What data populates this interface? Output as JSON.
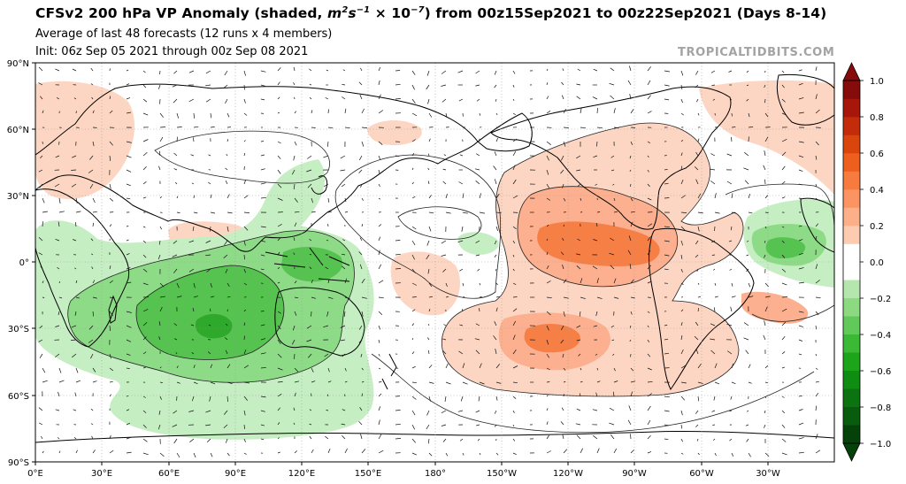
{
  "title": {
    "prefix": "CFSv2 200 hPa VP Anomaly (shaded, ",
    "unit_m": "m",
    "unit_m_exp": "2",
    "unit_s": "s",
    "unit_s_exp": "−1",
    "unit_times": " × 10",
    "unit_pow_exp": "−7",
    "suffix": ") from 00z15Sep2021 to 00z22Sep2021 (Days 8-14)"
  },
  "subtitle_line1": "Average of last 48 forecasts (12 runs x 4 members)",
  "subtitle_line2": "Init: 06z Sep 05 2021 through 00z Sep 08 2021",
  "credit": "TROPICALTIDBITS.COM",
  "lat_labels": [
    "90°N",
    "60°N",
    "30°N",
    "0°",
    "30°S",
    "60°S",
    "90°S"
  ],
  "lon_labels": [
    "0°E",
    "30°E",
    "60°E",
    "90°E",
    "120°E",
    "150°E",
    "180°",
    "150°W",
    "120°W",
    "90°W",
    "60°W",
    "30°W"
  ],
  "colorbar": {
    "ticks": [
      "1.0",
      "0.8",
      "0.6",
      "0.4",
      "0.2",
      "0.0",
      "−0.2",
      "−0.4",
      "−0.6",
      "−0.8",
      "−1.0"
    ],
    "positive_colors": [
      "#ffe8dc",
      "#fdcbb0",
      "#fcb08a",
      "#fb9462",
      "#f77a3e",
      "#ee5e1c",
      "#d9450c",
      "#c22c0b",
      "#a7160b",
      "#860b0b"
    ],
    "negative_colors": [
      "#d9f3d6",
      "#b4e6ae",
      "#8cd982",
      "#61c95a",
      "#3cb934",
      "#1ca51a",
      "#0f8d12",
      "#0b7410",
      "#085c0d",
      "#05420a"
    ],
    "neutral_color": "#ffffff"
  },
  "colors": {
    "positive_light": "#fdd6c3",
    "positive_mid": "#fcb08f",
    "positive_strong": "#f67f45",
    "negative_light": "#c6eec3",
    "negative_mid": "#8edb87",
    "negative_strong": "#56c350",
    "negative_core": "#2ea92b"
  }
}
